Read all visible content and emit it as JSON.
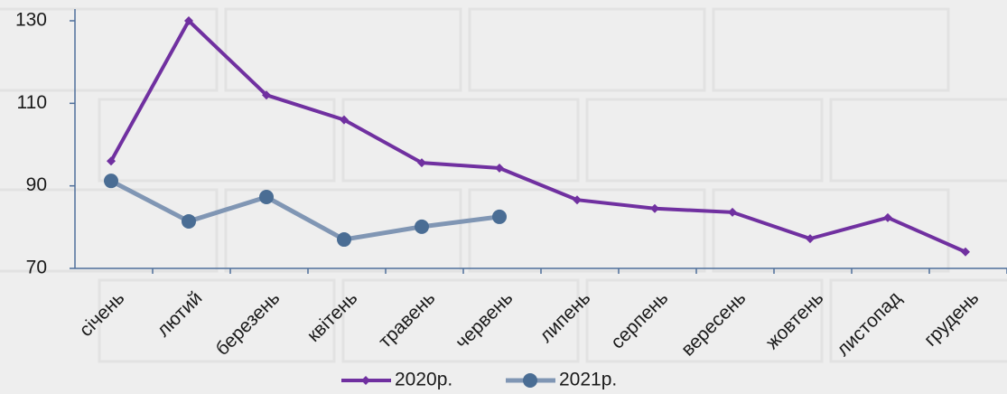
{
  "chart_data": {
    "type": "line",
    "categories": [
      "січень",
      "лютий",
      "березень",
      "квітень",
      "травень",
      "червень",
      "липень",
      "серпень",
      "вересень",
      "жовтень",
      "листопад",
      "грудень"
    ],
    "series": [
      {
        "name": "2020р.",
        "color": "#7030a0",
        "values": [
          96,
          130,
          112,
          106,
          95.6,
          94.3,
          86.6,
          84.5,
          83.6,
          77.2,
          82.3,
          74
        ]
      },
      {
        "name": "2021р.",
        "color": "#8096b4",
        "values": [
          91.2,
          81.4,
          87.3,
          77,
          80.1,
          82.5,
          null,
          null,
          null,
          null,
          null,
          null
        ]
      }
    ],
    "ylim": [
      70,
      130
    ],
    "yticks": [
      70,
      90,
      110,
      130
    ],
    "grid": false,
    "legend": "bottom"
  }
}
